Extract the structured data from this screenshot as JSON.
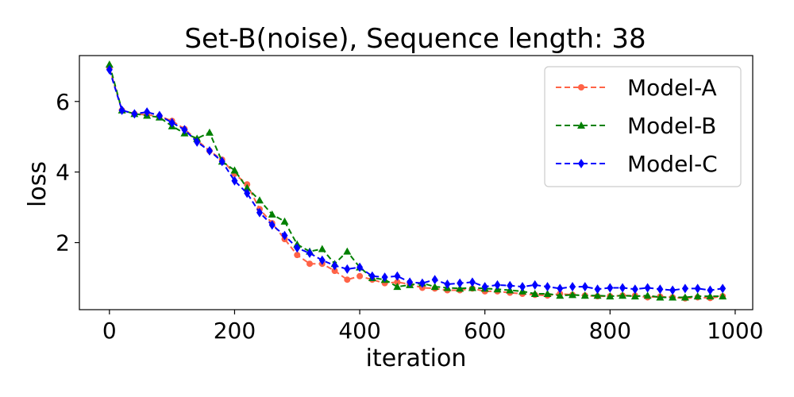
{
  "chart_data": {
    "type": "line",
    "title": "Set-B(noise), Sequence length: 38",
    "xlabel": "iteration",
    "ylabel": "loss",
    "xlim": [
      -48,
      1028
    ],
    "ylim": [
      0.1,
      7.3
    ],
    "xticks": [
      0,
      200,
      400,
      600,
      800,
      1000
    ],
    "yticks": [
      2,
      4,
      6
    ],
    "legend_position": "top-right",
    "grid": false,
    "x": [
      0,
      20,
      40,
      60,
      80,
      100,
      120,
      140,
      160,
      180,
      200,
      220,
      240,
      260,
      280,
      300,
      320,
      340,
      360,
      380,
      400,
      420,
      440,
      460,
      480,
      500,
      520,
      540,
      560,
      580,
      600,
      620,
      640,
      660,
      680,
      700,
      720,
      740,
      760,
      780,
      800,
      820,
      840,
      860,
      880,
      900,
      920,
      940,
      960,
      980
    ],
    "series": [
      {
        "name": "Model-A",
        "color": "#ff6347",
        "marker": "circle",
        "values": [
          6.95,
          5.75,
          5.65,
          5.62,
          5.58,
          5.45,
          5.22,
          4.9,
          4.6,
          4.35,
          3.95,
          3.65,
          2.95,
          2.55,
          2.1,
          1.65,
          1.4,
          1.4,
          1.2,
          0.95,
          1.05,
          0.95,
          0.85,
          0.88,
          0.82,
          0.72,
          0.7,
          0.65,
          0.65,
          0.7,
          0.62,
          0.62,
          0.58,
          0.55,
          0.52,
          0.5,
          0.55,
          0.52,
          0.5,
          0.48,
          0.48,
          0.5,
          0.5,
          0.45,
          0.47,
          0.45,
          0.42,
          0.45,
          0.43,
          0.48
        ]
      },
      {
        "name": "Model-B",
        "color": "#008000",
        "marker": "triangle",
        "values": [
          7.05,
          5.75,
          5.65,
          5.6,
          5.55,
          5.3,
          5.1,
          4.95,
          5.12,
          4.3,
          4.05,
          3.55,
          3.2,
          2.8,
          2.6,
          1.95,
          1.75,
          1.82,
          1.4,
          1.75,
          1.3,
          1.0,
          0.95,
          0.75,
          0.8,
          0.85,
          0.75,
          0.72,
          0.7,
          0.72,
          0.7,
          0.68,
          0.65,
          0.62,
          0.55,
          0.55,
          0.5,
          0.52,
          0.5,
          0.5,
          0.48,
          0.5,
          0.48,
          0.5,
          0.45,
          0.45,
          0.45,
          0.48,
          0.48,
          0.48
        ]
      },
      {
        "name": "Model-C",
        "color": "#0000ff",
        "marker": "diamond",
        "values": [
          6.9,
          5.75,
          5.65,
          5.7,
          5.6,
          5.4,
          5.2,
          4.85,
          4.6,
          4.3,
          3.75,
          3.4,
          2.85,
          2.5,
          2.2,
          1.85,
          1.7,
          1.5,
          1.35,
          1.25,
          1.3,
          1.05,
          1.02,
          1.05,
          0.88,
          0.85,
          0.95,
          0.82,
          0.85,
          0.88,
          0.75,
          0.8,
          0.78,
          0.75,
          0.8,
          0.75,
          0.7,
          0.75,
          0.75,
          0.68,
          0.72,
          0.72,
          0.68,
          0.72,
          0.68,
          0.65,
          0.7,
          0.7,
          0.65,
          0.7
        ]
      }
    ]
  }
}
